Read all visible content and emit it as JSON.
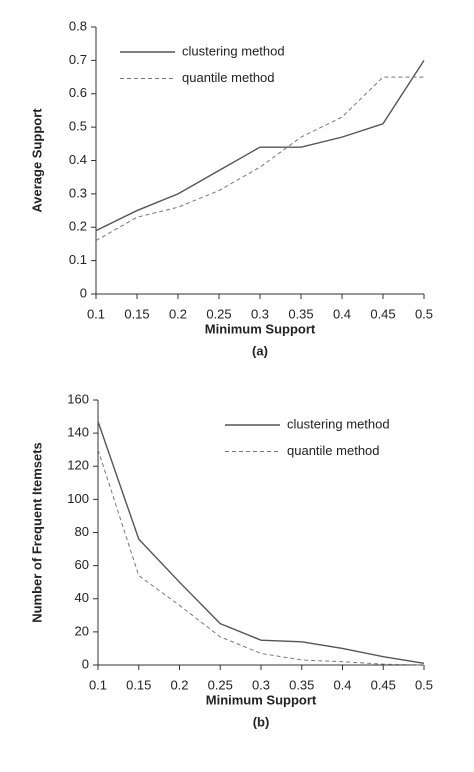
{
  "chart_data": [
    {
      "type": "line",
      "x_label": "Minimum Support",
      "y_label": "Average Support",
      "caption": "(a)",
      "x": [
        0.1,
        0.15,
        0.2,
        0.25,
        0.3,
        0.35,
        0.4,
        0.45,
        0.5
      ],
      "series": [
        {
          "name": "clustering method",
          "color": "#555555",
          "style": "solid",
          "values": [
            0.19,
            0.25,
            0.3,
            0.37,
            0.44,
            0.44,
            0.47,
            0.51,
            0.7
          ]
        },
        {
          "name": "quantile method",
          "color": "#777777",
          "style": "dashed",
          "values": [
            0.16,
            0.23,
            0.26,
            0.31,
            0.38,
            0.47,
            0.53,
            0.65,
            0.65
          ]
        }
      ],
      "xlim": [
        0.1,
        0.5
      ],
      "xticks": [
        0.1,
        0.15,
        0.2,
        0.25,
        0.3,
        0.35,
        0.4,
        0.45,
        0.5
      ],
      "ylim": [
        0,
        0.8
      ],
      "yticks": [
        0,
        0.1,
        0.2,
        0.3,
        0.4,
        0.5,
        0.6,
        0.7,
        0.8
      ],
      "grid": false,
      "legend": "top-left"
    },
    {
      "type": "line",
      "x_label": "Minimum Support",
      "y_label": "Number of Frequent Itemsets",
      "caption": "(b)",
      "x": [
        0.1,
        0.15,
        0.2,
        0.25,
        0.3,
        0.35,
        0.4,
        0.45,
        0.5
      ],
      "series": [
        {
          "name": "clustering method",
          "color": "#555555",
          "style": "solid",
          "values": [
            147,
            76,
            50,
            25,
            15,
            14,
            10,
            5,
            1
          ]
        },
        {
          "name": "quantile method",
          "color": "#777777",
          "style": "dashed",
          "values": [
            130,
            54,
            36,
            17,
            7,
            3,
            2,
            0.5,
            0
          ]
        }
      ],
      "xlim": [
        0.1,
        0.5
      ],
      "xticks": [
        0.1,
        0.15,
        0.2,
        0.25,
        0.3,
        0.35,
        0.4,
        0.45,
        0.5
      ],
      "ylim": [
        0,
        160
      ],
      "yticks": [
        0,
        20,
        40,
        60,
        80,
        100,
        120,
        140,
        160
      ],
      "grid": false,
      "legend": "top-right"
    }
  ]
}
